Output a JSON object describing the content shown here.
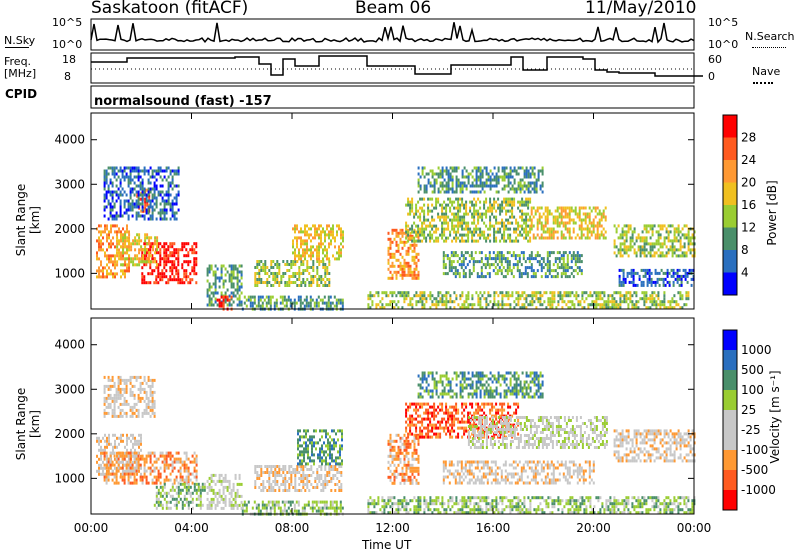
{
  "header": {
    "station": "Saskatoon (fitACF)",
    "beam": "Beam 06",
    "date": "11/May/2010"
  },
  "sky_panel": {
    "left_label": "N.Sky",
    "right_label": "N.Search",
    "left_ticks": [
      "10^5",
      "10^0"
    ],
    "right_ticks": [
      "10^5",
      "10^0"
    ]
  },
  "freq_panel": {
    "left_label_line1": "Freq.",
    "left_label_line2": "[MHz]",
    "right_label": "Nave",
    "left_ticks": [
      "18",
      "8"
    ],
    "right_ticks": [
      "60",
      "0"
    ]
  },
  "cpid": {
    "label": "CPID",
    "mode": "normalsound (fast) -157"
  },
  "chart_data": [
    {
      "type": "heatmap",
      "name": "power",
      "ylabel": "Slant Range [km]",
      "ylim": [
        200,
        4600
      ],
      "yticks": [
        "4000",
        "3000",
        "2000",
        "1000"
      ],
      "colorbar_label": "Power [dB]",
      "colorbar_ticks": [
        "28",
        "24",
        "20",
        "16",
        "12",
        "8",
        "4"
      ],
      "colors": [
        "#0000ff",
        "#2a6fbf",
        "#4a8f6a",
        "#9acd32",
        "#f0c020",
        "#ff9933",
        "#ff5a1f",
        "#ff0000"
      ],
      "regions": [
        {
          "x0": 0.2,
          "x1": 1.5,
          "y0": 900,
          "y1": 2100,
          "level": 5
        },
        {
          "x0": 2.0,
          "x1": 4.2,
          "y0": 800,
          "y1": 1700,
          "level": 7
        },
        {
          "x0": 1.0,
          "x1": 2.6,
          "y0": 1200,
          "y1": 1900,
          "level": 4
        },
        {
          "x0": 1.8,
          "x1": 2.3,
          "y0": 2400,
          "y1": 2900,
          "level": 6
        },
        {
          "x0": 0.5,
          "x1": 3.5,
          "y0": 2200,
          "y1": 3400,
          "level": 1
        },
        {
          "x0": 4.6,
          "x1": 6.0,
          "y0": 300,
          "y1": 1200,
          "level": 2
        },
        {
          "x0": 5.0,
          "x1": 5.6,
          "y0": 200,
          "y1": 500,
          "level": 7
        },
        {
          "x0": 6.5,
          "x1": 9.5,
          "y0": 700,
          "y1": 1300,
          "level": 3
        },
        {
          "x0": 8.0,
          "x1": 10.0,
          "y0": 1300,
          "y1": 2100,
          "level": 4
        },
        {
          "x0": 6.0,
          "x1": 10.0,
          "y0": 200,
          "y1": 500,
          "level": 2
        },
        {
          "x0": 11.8,
          "x1": 13.0,
          "y0": 900,
          "y1": 2000,
          "level": 5
        },
        {
          "x0": 12.5,
          "x1": 17.5,
          "y0": 1700,
          "y1": 2700,
          "level": 3
        },
        {
          "x0": 13.0,
          "x1": 18.0,
          "y0": 2800,
          "y1": 3400,
          "level": 2
        },
        {
          "x0": 14.0,
          "x1": 19.5,
          "y0": 900,
          "y1": 1500,
          "level": 2
        },
        {
          "x0": 17.5,
          "x1": 20.5,
          "y0": 1800,
          "y1": 2500,
          "level": 4
        },
        {
          "x0": 11.0,
          "x1": 23.8,
          "y0": 200,
          "y1": 600,
          "level": 3
        },
        {
          "x0": 20.8,
          "x1": 24.0,
          "y0": 1400,
          "y1": 2100,
          "level": 3
        },
        {
          "x0": 21.0,
          "x1": 24.0,
          "y0": 700,
          "y1": 1100,
          "level": 1
        }
      ]
    },
    {
      "type": "heatmap",
      "name": "velocity",
      "ylabel": "Slant Range [km]",
      "ylim": [
        200,
        4600
      ],
      "yticks": [
        "4000",
        "3000",
        "2000",
        "1000"
      ],
      "colorbar_label": "Velocity [m s⁻¹]",
      "colorbar_ticks": [
        "1000",
        "500",
        "100",
        "25",
        "-25",
        "-100",
        "-500",
        "-1000"
      ],
      "colors": [
        "#ff0000",
        "#ff5a1f",
        "#ff9933",
        "#c8c8c8",
        "#c8c8c8",
        "#9acd32",
        "#4a8f6a",
        "#2a6fbf",
        "#0000ff"
      ],
      "regions": [
        {
          "x0": 0.2,
          "x1": 2.0,
          "y0": 1100,
          "y1": 2000,
          "level": 3
        },
        {
          "x0": 0.5,
          "x1": 4.2,
          "y0": 900,
          "y1": 1600,
          "level": 2
        },
        {
          "x0": 2.5,
          "x1": 4.5,
          "y0": 300,
          "y1": 900,
          "level": 5
        },
        {
          "x0": 0.5,
          "x1": 2.5,
          "y0": 2400,
          "y1": 3300,
          "level": 3
        },
        {
          "x0": 4.6,
          "x1": 6.0,
          "y0": 300,
          "y1": 1100,
          "level": 4
        },
        {
          "x0": 6.5,
          "x1": 10.0,
          "y0": 700,
          "y1": 1300,
          "level": 3
        },
        {
          "x0": 8.2,
          "x1": 10.0,
          "y0": 1300,
          "y1": 2100,
          "level": 6
        },
        {
          "x0": 6.0,
          "x1": 10.0,
          "y0": 200,
          "y1": 500,
          "level": 5
        },
        {
          "x0": 11.8,
          "x1": 13.0,
          "y0": 900,
          "y1": 2000,
          "level": 2
        },
        {
          "x0": 12.5,
          "x1": 17.0,
          "y0": 1900,
          "y1": 2700,
          "level": 1
        },
        {
          "x0": 15.0,
          "x1": 20.5,
          "y0": 1700,
          "y1": 2400,
          "level": 4
        },
        {
          "x0": 13.0,
          "x1": 18.0,
          "y0": 2800,
          "y1": 3400,
          "level": 6
        },
        {
          "x0": 14.0,
          "x1": 20.0,
          "y0": 900,
          "y1": 1400,
          "level": 3
        },
        {
          "x0": 11.0,
          "x1": 24.0,
          "y0": 200,
          "y1": 600,
          "level": 5
        },
        {
          "x0": 20.8,
          "x1": 24.0,
          "y0": 1400,
          "y1": 2100,
          "level": 3
        }
      ]
    }
  ],
  "x_axis": {
    "label": "Time UT",
    "xlim": [
      0,
      24
    ],
    "ticks": [
      "00:00",
      "04:00",
      "08:00",
      "12:00",
      "16:00",
      "20:00",
      "00:00"
    ]
  }
}
